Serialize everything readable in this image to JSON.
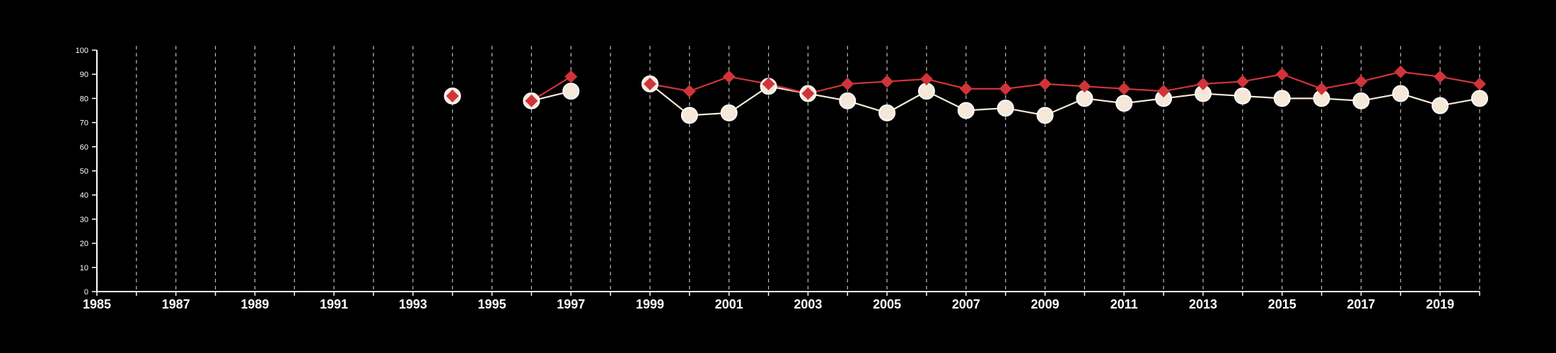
{
  "chart_data": {
    "type": "line",
    "title": "",
    "xlabel": "",
    "ylabel": "",
    "xlim": [
      1985,
      2020
    ],
    "ylim": [
      0,
      100
    ],
    "x_tick_labels": [
      "1985",
      "1987",
      "1989",
      "1991",
      "1993",
      "1995",
      "1997",
      "1999",
      "2001",
      "2003",
      "2005",
      "2007",
      "2009",
      "2011",
      "2013",
      "2015",
      "2017",
      "2019"
    ],
    "y_tick_labels": [
      "0",
      "10",
      "20",
      "30",
      "40",
      "50",
      "60",
      "70",
      "80",
      "90",
      "100"
    ],
    "grid": "vertical dashed lines at every year",
    "background": "#000000",
    "series": [
      {
        "marker": "diamond",
        "color": "#d0343a",
        "x": [
          1994,
          1996,
          1997,
          1999,
          2000,
          2001,
          2002,
          2003,
          2004,
          2005,
          2006,
          2007,
          2008,
          2009,
          2010,
          2011,
          2012,
          2013,
          2014,
          2015,
          2016,
          2017,
          2018,
          2019,
          2020
        ],
        "y": [
          81,
          79,
          89,
          86,
          83,
          89,
          86,
          82,
          86,
          87,
          88,
          84,
          84,
          86,
          85,
          84,
          83,
          86,
          87,
          90,
          84,
          87,
          91,
          89,
          86
        ]
      },
      {
        "marker": "circle",
        "color": "#f5e8d8",
        "x": [
          1994,
          1996,
          1997,
          1999,
          2000,
          2001,
          2002,
          2003,
          2004,
          2005,
          2006,
          2007,
          2008,
          2009,
          2010,
          2011,
          2012,
          2013,
          2014,
          2015,
          2016,
          2017,
          2018,
          2019,
          2020
        ],
        "y": [
          81,
          79,
          83,
          86,
          73,
          74,
          85,
          82,
          79,
          74,
          83,
          75,
          76,
          73,
          80,
          78,
          80,
          82,
          81,
          80,
          80,
          79,
          82,
          77,
          80
        ]
      }
    ]
  }
}
